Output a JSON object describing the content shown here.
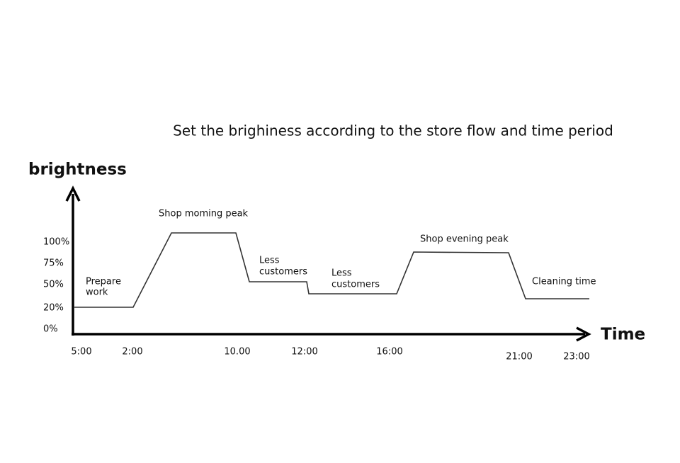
{
  "title": "Set the brighiness according to the store flow and time period",
  "y_axis_label": "brightness",
  "x_axis_label": "Time",
  "y_labels": [
    "100%",
    "75%",
    "50%",
    "20%",
    "0%"
  ],
  "x_labels": [
    "5:00",
    "2:00",
    "10.00",
    "12:00",
    "16:00",
    "21:00",
    "23:00"
  ],
  "annotations": {
    "prepare_work": [
      "Prepare",
      "work"
    ],
    "morning_peak": "Shop moming peak",
    "less_customers_1": [
      "Less",
      "customers"
    ],
    "less_customers_2": [
      "Less",
      "customers"
    ],
    "evening_peak": "Shop evening peak",
    "cleaning_time": "Cleaning time"
  }
}
